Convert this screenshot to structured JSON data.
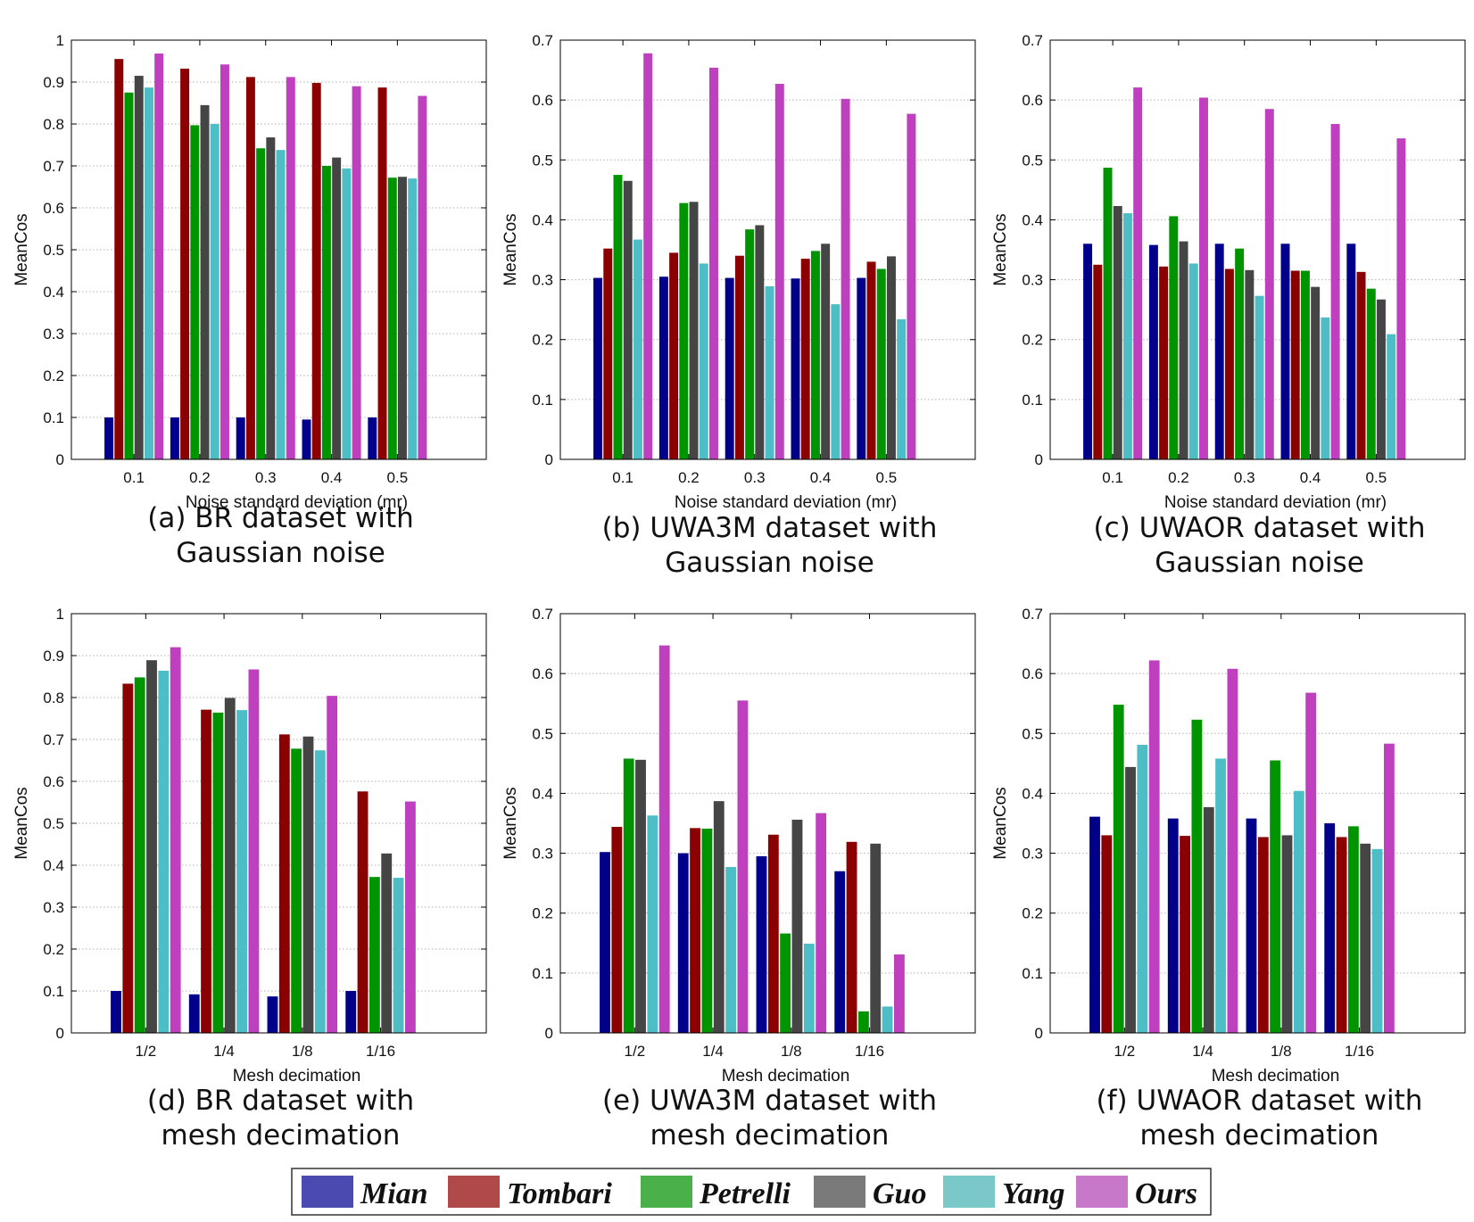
{
  "series_colors": {
    "Mian": "#00008b",
    "Tombari": "#8b0000",
    "Petrelli": "#009400",
    "Guo": "#454545",
    "Yang": "#4dbdc6",
    "Ours": "#bf40bf"
  },
  "legend": {
    "items": [
      {
        "name": "Mian",
        "swatch": "#4a4ab0"
      },
      {
        "name": "Tombari",
        "swatch": "#b04a4a"
      },
      {
        "name": "Petrelli",
        "swatch": "#4ab04a"
      },
      {
        "name": "Guo",
        "swatch": "#7a7a7a"
      },
      {
        "name": "Yang",
        "swatch": "#7ac8c8"
      },
      {
        "name": "Ours",
        "swatch": "#c878c8"
      }
    ]
  },
  "chart_data": [
    {
      "type": "bar",
      "caption": [
        "(a) BR dataset with",
        "Gaussian noise"
      ],
      "xlabel": "Noise standard deviation (mr)",
      "ylabel": "MeanCos",
      "ylim": [
        0,
        1
      ],
      "yticks": [
        "0",
        "0.1",
        "0.2",
        "0.3",
        "0.4",
        "0.5",
        "0.6",
        "0.7",
        "0.8",
        "0.9",
        "1"
      ],
      "grid": true,
      "categories": [
        "0.1",
        "0.2",
        "0.3",
        "0.4",
        "0.5"
      ],
      "series": [
        {
          "name": "Mian",
          "values": [
            0.1,
            0.1,
            0.1,
            0.095,
            0.1
          ]
        },
        {
          "name": "Tombari",
          "values": [
            0.955,
            0.932,
            0.912,
            0.898,
            0.887
          ]
        },
        {
          "name": "Petrelli",
          "values": [
            0.875,
            0.797,
            0.742,
            0.7,
            0.672
          ]
        },
        {
          "name": "Guo",
          "values": [
            0.915,
            0.845,
            0.768,
            0.72,
            0.674
          ]
        },
        {
          "name": "Yang",
          "values": [
            0.887,
            0.8,
            0.738,
            0.694,
            0.67
          ]
        },
        {
          "name": "Ours",
          "values": [
            0.968,
            0.942,
            0.912,
            0.89,
            0.867
          ]
        }
      ]
    },
    {
      "type": "bar",
      "caption": [
        "(b) UWA3M dataset with",
        "Gaussian noise"
      ],
      "xlabel": "Noise standard deviation (mr)",
      "ylabel": "MeanCos",
      "ylim": [
        0,
        0.7
      ],
      "yticks": [
        "0",
        "0.1",
        "0.2",
        "0.3",
        "0.4",
        "0.5",
        "0.6",
        "0.7"
      ],
      "grid": true,
      "categories": [
        "0.1",
        "0.2",
        "0.3",
        "0.4",
        "0.5"
      ],
      "series": [
        {
          "name": "Mian",
          "values": [
            0.303,
            0.305,
            0.303,
            0.302,
            0.303
          ]
        },
        {
          "name": "Tombari",
          "values": [
            0.352,
            0.345,
            0.34,
            0.335,
            0.33
          ]
        },
        {
          "name": "Petrelli",
          "values": [
            0.475,
            0.428,
            0.384,
            0.348,
            0.318
          ]
        },
        {
          "name": "Guo",
          "values": [
            0.465,
            0.43,
            0.391,
            0.36,
            0.339
          ]
        },
        {
          "name": "Yang",
          "values": [
            0.367,
            0.327,
            0.289,
            0.259,
            0.234
          ]
        },
        {
          "name": "Ours",
          "values": [
            0.678,
            0.654,
            0.627,
            0.602,
            0.577
          ]
        }
      ]
    },
    {
      "type": "bar",
      "caption": [
        "(c) UWAOR dataset with",
        "Gaussian noise"
      ],
      "xlabel": "Noise standard deviation (mr)",
      "ylabel": "MeanCos",
      "ylim": [
        0,
        0.7
      ],
      "yticks": [
        "0",
        "0.1",
        "0.2",
        "0.3",
        "0.4",
        "0.5",
        "0.6",
        "0.7"
      ],
      "grid": true,
      "categories": [
        "0.1",
        "0.2",
        "0.3",
        "0.4",
        "0.5"
      ],
      "series": [
        {
          "name": "Mian",
          "values": [
            0.36,
            0.358,
            0.36,
            0.36,
            0.36
          ]
        },
        {
          "name": "Tombari",
          "values": [
            0.325,
            0.322,
            0.318,
            0.315,
            0.313
          ]
        },
        {
          "name": "Petrelli",
          "values": [
            0.487,
            0.406,
            0.352,
            0.315,
            0.285
          ]
        },
        {
          "name": "Guo",
          "values": [
            0.423,
            0.364,
            0.316,
            0.288,
            0.267
          ]
        },
        {
          "name": "Yang",
          "values": [
            0.411,
            0.327,
            0.273,
            0.237,
            0.209
          ]
        },
        {
          "name": "Ours",
          "values": [
            0.621,
            0.604,
            0.585,
            0.56,
            0.536
          ]
        }
      ]
    },
    {
      "type": "bar",
      "caption": [
        "(d) BR dataset with",
        "mesh decimation"
      ],
      "xlabel": "Mesh decimation",
      "ylabel": "MeanCos",
      "ylim": [
        0,
        1
      ],
      "yticks": [
        "0",
        "0.1",
        "0.2",
        "0.3",
        "0.4",
        "0.5",
        "0.6",
        "0.7",
        "0.8",
        "0.9",
        "1"
      ],
      "grid": true,
      "categories": [
        "1/2",
        "1/4",
        "1/8",
        "1/16"
      ],
      "series": [
        {
          "name": "Mian",
          "values": [
            0.1,
            0.092,
            0.087,
            0.1
          ]
        },
        {
          "name": "Tombari",
          "values": [
            0.833,
            0.771,
            0.712,
            0.576
          ]
        },
        {
          "name": "Petrelli",
          "values": [
            0.848,
            0.764,
            0.678,
            0.372
          ]
        },
        {
          "name": "Guo",
          "values": [
            0.889,
            0.799,
            0.707,
            0.428
          ]
        },
        {
          "name": "Yang",
          "values": [
            0.864,
            0.77,
            0.674,
            0.37
          ]
        },
        {
          "name": "Ours",
          "values": [
            0.92,
            0.867,
            0.804,
            0.552
          ]
        }
      ]
    },
    {
      "type": "bar",
      "caption": [
        "(e) UWA3M dataset with",
        "mesh decimation"
      ],
      "xlabel": "",
      "ylabel": "MeanCos",
      "ylim": [
        0,
        0.7
      ],
      "yticks": [
        "0",
        "0.1",
        "0.2",
        "0.3",
        "0.4",
        "0.5",
        "0.6",
        "0.7"
      ],
      "grid": true,
      "categories": [
        "1/2",
        "1/4",
        "1/8",
        "1/16"
      ],
      "series": [
        {
          "name": "Mian",
          "values": [
            0.302,
            0.3,
            0.295,
            0.27
          ]
        },
        {
          "name": "Tombari",
          "values": [
            0.344,
            0.342,
            0.331,
            0.319
          ]
        },
        {
          "name": "Petrelli",
          "values": [
            0.458,
            0.341,
            0.166,
            0.036
          ]
        },
        {
          "name": "Guo",
          "values": [
            0.456,
            0.387,
            0.356,
            0.316
          ]
        },
        {
          "name": "Yang",
          "values": [
            0.363,
            0.277,
            0.149,
            0.044
          ]
        },
        {
          "name": "Ours",
          "values": [
            0.647,
            0.555,
            0.367,
            0.131
          ]
        }
      ],
      "xlabel_right": "Mesh decimation"
    },
    {
      "type": "bar",
      "caption": [
        "(f) UWAOR dataset with",
        "mesh decimation"
      ],
      "xlabel": "Mesh decimation",
      "ylabel": "MeanCos",
      "ylim": [
        0,
        0.7
      ],
      "yticks": [
        "0",
        "0.1",
        "0.2",
        "0.3",
        "0.4",
        "0.5",
        "0.6",
        "0.7"
      ],
      "grid": true,
      "categories": [
        "1/2",
        "1/4",
        "1/8",
        "1/16"
      ],
      "series": [
        {
          "name": "Mian",
          "values": [
            0.361,
            0.358,
            0.358,
            0.35
          ]
        },
        {
          "name": "Tombari",
          "values": [
            0.33,
            0.329,
            0.327,
            0.327
          ]
        },
        {
          "name": "Petrelli",
          "values": [
            0.548,
            0.523,
            0.455,
            0.345
          ]
        },
        {
          "name": "Guo",
          "values": [
            0.444,
            0.377,
            0.33,
            0.316
          ]
        },
        {
          "name": "Yang",
          "values": [
            0.481,
            0.458,
            0.404,
            0.307
          ]
        },
        {
          "name": "Ours",
          "values": [
            0.622,
            0.608,
            0.568,
            0.483
          ]
        }
      ]
    }
  ]
}
